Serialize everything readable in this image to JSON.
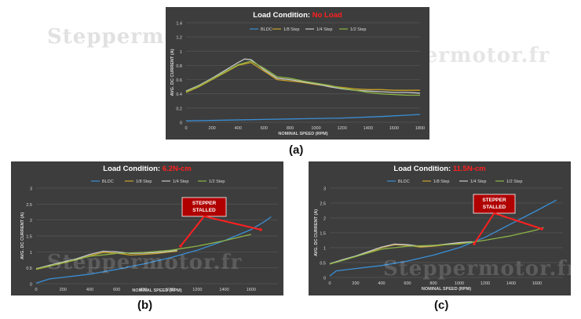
{
  "watermark": "Steppermotor.fr",
  "captions": [
    "(a)",
    "(b)",
    "(c)"
  ],
  "colors": {
    "background": "#3d3d3d",
    "grid": "#575757",
    "axis_text": "#d8d8d8",
    "title_text": "#ffffff",
    "highlight": "#ff2020",
    "BLDC": "#3a8fd6",
    "1/8 Step": "#c9a227",
    "1/4 Step": "#c8c8c8",
    "1/2 Step": "#8cb545"
  },
  "chart_data": [
    {
      "type": "line",
      "title_prefix": "Load Condition: ",
      "title_highlight": "No Load",
      "xlabel": "NOMINAL SPEED (RPM)",
      "ylabel": "AVG. DC CURRENT (A)",
      "xlim": [
        0,
        1800
      ],
      "ylim": [
        0,
        1.4
      ],
      "xticks": [
        0,
        200,
        400,
        600,
        800,
        1000,
        1200,
        1400,
        1600,
        1800
      ],
      "yticks": [
        0,
        0.2,
        0.4,
        0.6,
        0.8,
        1,
        1.2,
        1.4
      ],
      "ytick_labels": [
        "0",
        "0.2",
        "0.4",
        "0.6",
        "0.8",
        "1",
        "1.2",
        "1.4"
      ],
      "series": [
        {
          "name": "BLDC",
          "x": [
            0,
            300,
            600,
            900,
            1200,
            1500,
            1800
          ],
          "y": [
            0.02,
            0.03,
            0.04,
            0.05,
            0.06,
            0.08,
            0.11
          ]
        },
        {
          "name": "1/8 Step",
          "x": [
            0,
            100,
            200,
            300,
            400,
            500,
            600,
            700,
            800,
            900,
            1000,
            1100,
            1200,
            1300,
            1400,
            1500,
            1600,
            1700,
            1800
          ],
          "y": [
            0.42,
            0.5,
            0.6,
            0.7,
            0.8,
            0.84,
            0.72,
            0.6,
            0.58,
            0.56,
            0.53,
            0.51,
            0.49,
            0.47,
            0.46,
            0.46,
            0.45,
            0.45,
            0.45
          ]
        },
        {
          "name": "1/4 Step",
          "x": [
            0,
            100,
            200,
            300,
            400,
            450,
            500,
            600,
            700,
            800,
            900,
            1000,
            1100,
            1200,
            1300,
            1400,
            1500,
            1600,
            1700,
            1800
          ],
          "y": [
            0.44,
            0.52,
            0.62,
            0.73,
            0.84,
            0.89,
            0.88,
            0.74,
            0.62,
            0.6,
            0.57,
            0.54,
            0.5,
            0.47,
            0.45,
            0.44,
            0.43,
            0.42,
            0.42,
            0.41
          ]
        },
        {
          "name": "1/2 Step",
          "x": [
            0,
            100,
            200,
            300,
            400,
            500,
            600,
            700,
            800,
            900,
            1000,
            1100,
            1200,
            1300,
            1400,
            1500,
            1600,
            1700,
            1800
          ],
          "y": [
            0.43,
            0.51,
            0.61,
            0.71,
            0.81,
            0.86,
            0.76,
            0.64,
            0.62,
            0.58,
            0.55,
            0.52,
            0.48,
            0.45,
            0.42,
            0.4,
            0.39,
            0.38,
            0.38
          ]
        }
      ],
      "legend": "top"
    },
    {
      "type": "line",
      "title_prefix": "Load Condition: ",
      "title_highlight": "6.2N-cm",
      "xlabel": "NOMINAL SPEED (RPM)",
      "ylabel": "AVG. DC CURRENT (A)",
      "annotation": [
        "STEPPER",
        "STALLED"
      ],
      "xlim": [
        0,
        1800
      ],
      "ylim": [
        0,
        3
      ],
      "xticks": [
        0,
        200,
        400,
        600,
        800,
        1000,
        1200,
        1400,
        1600
      ],
      "yticks": [
        0,
        0.5,
        1,
        1.5,
        2,
        2.5,
        3
      ],
      "ytick_labels": [
        "0",
        "0.5",
        "1",
        "1.5",
        "2",
        "2.5",
        "3"
      ],
      "series": [
        {
          "name": "BLDC",
          "x": [
            0,
            100,
            200,
            400,
            600,
            800,
            1000,
            1200,
            1400,
            1600,
            1700,
            1750
          ],
          "y": [
            0.02,
            0.15,
            0.2,
            0.3,
            0.45,
            0.62,
            0.82,
            1.05,
            1.35,
            1.7,
            1.95,
            2.1
          ]
        },
        {
          "name": "1/8 Step",
          "x": [
            0,
            100,
            200,
            300,
            400,
            500,
            600,
            700,
            800,
            900,
            1000,
            1050
          ],
          "y": [
            0.45,
            0.55,
            0.65,
            0.75,
            0.88,
            0.98,
            0.96,
            0.9,
            0.92,
            0.95,
            1.0,
            1.02
          ]
        },
        {
          "name": "1/4 Step",
          "x": [
            0,
            100,
            200,
            300,
            400,
            500,
            600,
            700,
            800,
            900,
            1000,
            1050
          ],
          "y": [
            0.47,
            0.58,
            0.68,
            0.78,
            0.92,
            1.02,
            1.0,
            0.95,
            0.96,
            0.98,
            1.02,
            1.05
          ]
        },
        {
          "name": "1/2 Step",
          "x": [
            0,
            100,
            200,
            400,
            600,
            800,
            1000,
            1200,
            1400,
            1600
          ],
          "y": [
            0.46,
            0.56,
            0.66,
            0.86,
            0.95,
            0.98,
            1.05,
            1.18,
            1.35,
            1.55
          ]
        }
      ],
      "legend": "top"
    },
    {
      "type": "line",
      "title_prefix": "Load Condition: ",
      "title_highlight": "11.5N-cm",
      "xlabel": "NOMINAL SPEED (RPM)",
      "ylabel": "AVG. DC CURRENT (A)",
      "annotation": [
        "STEPPER",
        "STALLED"
      ],
      "xlim": [
        0,
        1800
      ],
      "ylim": [
        0,
        3
      ],
      "xticks": [
        0,
        200,
        400,
        600,
        800,
        1000,
        1200,
        1400,
        1600
      ],
      "yticks": [
        0,
        0.5,
        1,
        1.5,
        2,
        2.5,
        3
      ],
      "ytick_labels": [
        "0",
        "0.5",
        "1",
        "1.5",
        "2",
        "2.5",
        "3"
      ],
      "series": [
        {
          "name": "BLDC",
          "x": [
            0,
            50,
            200,
            400,
            600,
            800,
            1000,
            1200,
            1400,
            1600,
            1750
          ],
          "y": [
            0.05,
            0.22,
            0.3,
            0.4,
            0.55,
            0.75,
            1.0,
            1.35,
            1.8,
            2.25,
            2.6
          ]
        },
        {
          "name": "1/8 Step",
          "x": [
            0,
            100,
            200,
            300,
            400,
            500,
            600,
            700,
            800,
            900,
            1000,
            1100
          ],
          "y": [
            0.45,
            0.58,
            0.7,
            0.85,
            1.0,
            1.1,
            1.08,
            1.02,
            1.05,
            1.1,
            1.15,
            1.18
          ]
        },
        {
          "name": "1/4 Step",
          "x": [
            0,
            100,
            200,
            300,
            400,
            500,
            600,
            700,
            800,
            900,
            1000,
            1100
          ],
          "y": [
            0.46,
            0.6,
            0.72,
            0.87,
            1.02,
            1.12,
            1.1,
            1.05,
            1.07,
            1.12,
            1.17,
            1.2
          ]
        },
        {
          "name": "1/2 Step",
          "x": [
            0,
            100,
            200,
            400,
            600,
            800,
            1000,
            1200,
            1400,
            1600,
            1650
          ],
          "y": [
            0.45,
            0.57,
            0.7,
            0.95,
            1.05,
            1.08,
            1.12,
            1.25,
            1.4,
            1.6,
            1.68
          ]
        }
      ],
      "legend": "top"
    }
  ]
}
